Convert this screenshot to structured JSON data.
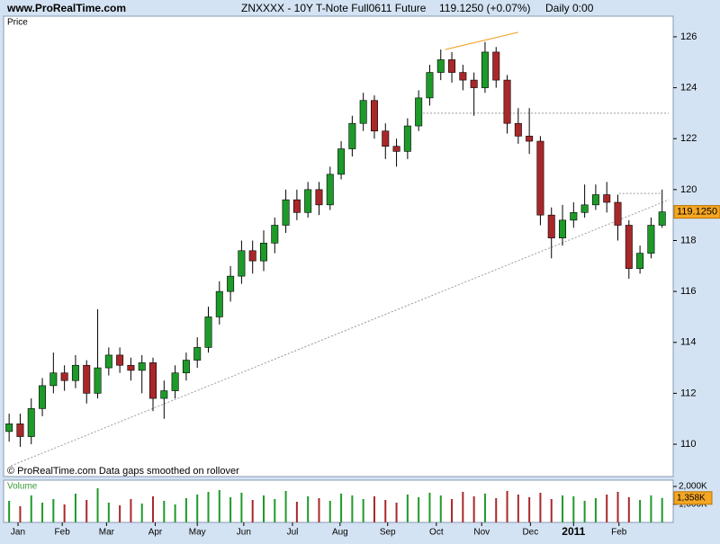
{
  "header": {
    "site": "www.ProRealTime.com",
    "title": "ZNXXXX - 10Y T-Note Full0611 Future",
    "quote": "119.1250 (+0.07%)",
    "period": "Daily  0:00"
  },
  "chart_data": {
    "type": "candlestick",
    "price_label": "Price",
    "footnote": "© ProRealTime.com  Data gaps smoothed on rollover",
    "up_color": "#1e9a2a",
    "down_color": "#a8282a",
    "xlim": [
      -0.5,
      60
    ],
    "xticks": [
      {
        "value": 0.8,
        "label": "Jan"
      },
      {
        "value": 4.8,
        "label": "Feb"
      },
      {
        "value": 8.8,
        "label": "Mar"
      },
      {
        "value": 13.2,
        "label": "Apr"
      },
      {
        "value": 17,
        "label": "May"
      },
      {
        "value": 21.2,
        "label": "Jun"
      },
      {
        "value": 25.6,
        "label": "Jul"
      },
      {
        "value": 29.9,
        "label": "Aug"
      },
      {
        "value": 34.2,
        "label": "Sep"
      },
      {
        "value": 38.6,
        "label": "Oct"
      },
      {
        "value": 42.7,
        "label": "Nov"
      },
      {
        "value": 47.1,
        "label": "Dec"
      },
      {
        "value": 51,
        "label": "2011"
      },
      {
        "value": 55.1,
        "label": "Feb"
      }
    ],
    "ylim": [
      108.73,
      126.81
    ],
    "yticks": [
      110,
      112,
      114,
      116,
      118,
      120,
      122,
      124,
      126
    ],
    "open": [
      110.5,
      110.8,
      110.3,
      111.4,
      112.3,
      112.8,
      112.5,
      113.1,
      112.0,
      113.0,
      113.5,
      113.1,
      112.9,
      113.2,
      111.8,
      112.1,
      112.8,
      113.3,
      113.8,
      115.0,
      116.0,
      116.6,
      117.6,
      117.2,
      117.9,
      118.6,
      119.6,
      119.1,
      120.0,
      119.4,
      120.6,
      121.6,
      122.6,
      123.5,
      122.3,
      121.7,
      121.5,
      122.5,
      123.6,
      124.6,
      125.1,
      124.6,
      124.3,
      124.0,
      125.4,
      124.3,
      122.6,
      122.1,
      121.9,
      119.0,
      118.1,
      118.8,
      119.1,
      119.4,
      119.8,
      119.5,
      118.6,
      116.9,
      117.5,
      118.6
    ],
    "high": [
      111.2,
      111.2,
      111.8,
      112.6,
      113.6,
      113.1,
      113.5,
      113.3,
      115.3,
      113.8,
      113.8,
      113.4,
      113.5,
      113.4,
      112.5,
      113.1,
      113.6,
      114.2,
      115.4,
      116.4,
      117.0,
      118.0,
      118.0,
      118.4,
      118.9,
      120.0,
      120.0,
      120.3,
      120.3,
      120.9,
      121.9,
      122.9,
      123.8,
      123.7,
      122.6,
      122.0,
      122.8,
      123.9,
      124.9,
      125.5,
      125.4,
      124.9,
      124.6,
      125.8,
      125.6,
      124.5,
      123.2,
      123.2,
      122.1,
      119.3,
      119.4,
      119.5,
      120.2,
      120.2,
      120.3,
      119.8,
      118.8,
      117.8,
      118.9,
      120.0
    ],
    "low": [
      110.1,
      109.9,
      110.0,
      111.1,
      112.0,
      112.1,
      112.2,
      111.6,
      111.8,
      112.7,
      112.8,
      112.5,
      112.0,
      111.3,
      111.0,
      111.8,
      112.5,
      113.0,
      113.6,
      114.7,
      115.6,
      116.3,
      116.7,
      116.8,
      117.5,
      118.3,
      118.8,
      118.9,
      119.0,
      119.2,
      120.4,
      121.3,
      122.3,
      122.0,
      121.2,
      120.9,
      121.2,
      122.3,
      123.3,
      124.3,
      124.2,
      123.9,
      122.9,
      123.8,
      124.0,
      122.2,
      121.8,
      121.4,
      118.6,
      117.3,
      117.8,
      118.5,
      118.9,
      119.2,
      119.1,
      118.0,
      116.5,
      116.7,
      117.3,
      118.5
    ],
    "close": [
      110.8,
      110.3,
      111.4,
      112.3,
      112.8,
      112.5,
      113.1,
      112.0,
      113.0,
      113.5,
      113.1,
      112.9,
      113.2,
      111.8,
      112.1,
      112.8,
      113.3,
      113.8,
      115.0,
      116.0,
      116.6,
      117.6,
      117.2,
      117.9,
      118.6,
      119.6,
      119.1,
      120.0,
      119.4,
      120.6,
      121.6,
      122.6,
      123.5,
      122.3,
      121.7,
      121.5,
      122.5,
      123.6,
      124.6,
      125.1,
      124.6,
      124.3,
      124.0,
      125.4,
      124.3,
      122.6,
      122.1,
      121.9,
      119.0,
      118.1,
      118.8,
      119.1,
      119.4,
      119.8,
      119.5,
      118.6,
      116.9,
      117.5,
      118.6,
      119.125
    ],
    "last_close_label": "119.1250",
    "trendlines": [
      {
        "color": "#f0a020",
        "dash": false,
        "x": [
          39.4,
          46
        ],
        "y": [
          125.5,
          126.18
        ]
      },
      {
        "color": "#999999",
        "dash": true,
        "x": [
          37.4,
          59.6
        ],
        "y": [
          123,
          123
        ]
      },
      {
        "color": "#999999",
        "dash": true,
        "x": [
          0.16,
          59.6
        ],
        "y": [
          109.15,
          119.6
        ]
      },
      {
        "color": "#999999",
        "dash": true,
        "x": [
          55.1,
          59
        ],
        "y": [
          119.85,
          119.85
        ]
      }
    ],
    "volume": {
      "title": "Volume",
      "ylim": [
        0,
        2350
      ],
      "yticks": [
        {
          "value": 1000,
          "label": "1,000K"
        },
        {
          "value": 2000,
          "label": "2,000K"
        }
      ],
      "values": [
        1200,
        900,
        1500,
        1100,
        1300,
        1000,
        1600,
        1250,
        1900,
        1100,
        950,
        1300,
        1050,
        1450,
        1200,
        1000,
        1350,
        1550,
        1700,
        1800,
        1400,
        1650,
        1250,
        1500,
        1300,
        1750,
        1150,
        1450,
        1350,
        1200,
        1600,
        1500,
        1300,
        1450,
        1250,
        1100,
        1550,
        1400,
        1650,
        1500,
        1300,
        1700,
        1450,
        1600,
        1350,
        1750,
        1550,
        1400,
        1650,
        1300,
        1500,
        1450,
        1200,
        1350,
        1550,
        1700,
        1400,
        1250,
        1500,
        1358
      ],
      "last_label": "1,358K"
    }
  }
}
